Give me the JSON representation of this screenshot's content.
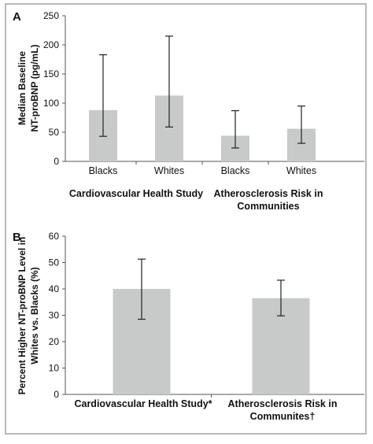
{
  "chart_data": [
    {
      "type": "bar",
      "panel_label": "A",
      "ylabel_lines": [
        "Median Baseline",
        "NT-proBNP (pg/mL)"
      ],
      "ylim": [
        0,
        250
      ],
      "yticks": [
        0,
        50,
        100,
        150,
        200,
        250
      ],
      "categories": [
        "Blacks",
        "Whites",
        "Blacks",
        "Whites"
      ],
      "values": [
        88,
        113,
        44,
        56
      ],
      "error_low": [
        43,
        59,
        23,
        31
      ],
      "error_high": [
        183,
        215,
        87,
        95
      ],
      "groups": [
        {
          "lines": [
            "Cardiovascular Health Study"
          ]
        },
        {
          "lines": [
            "Atherosclerosis Risk in",
            "Communities"
          ]
        }
      ],
      "grid": false
    },
    {
      "type": "bar",
      "panel_label": "B",
      "ylabel_lines": [
        "Percent Higher NT-proBNP Level in",
        "Whites vs. Blacks (%)"
      ],
      "ylim": [
        0,
        60
      ],
      "yticks": [
        0,
        10,
        20,
        30,
        40,
        50,
        60
      ],
      "categories": [
        {
          "lines": [
            "Cardiovascular Health Study*"
          ]
        },
        {
          "lines": [
            "Atherosclerosis Risk in",
            "Communites†"
          ]
        }
      ],
      "values": [
        40,
        36.5
      ],
      "error_low": [
        28.5,
        29.8
      ],
      "error_high": [
        51.3,
        43.3
      ],
      "grid": false
    }
  ]
}
